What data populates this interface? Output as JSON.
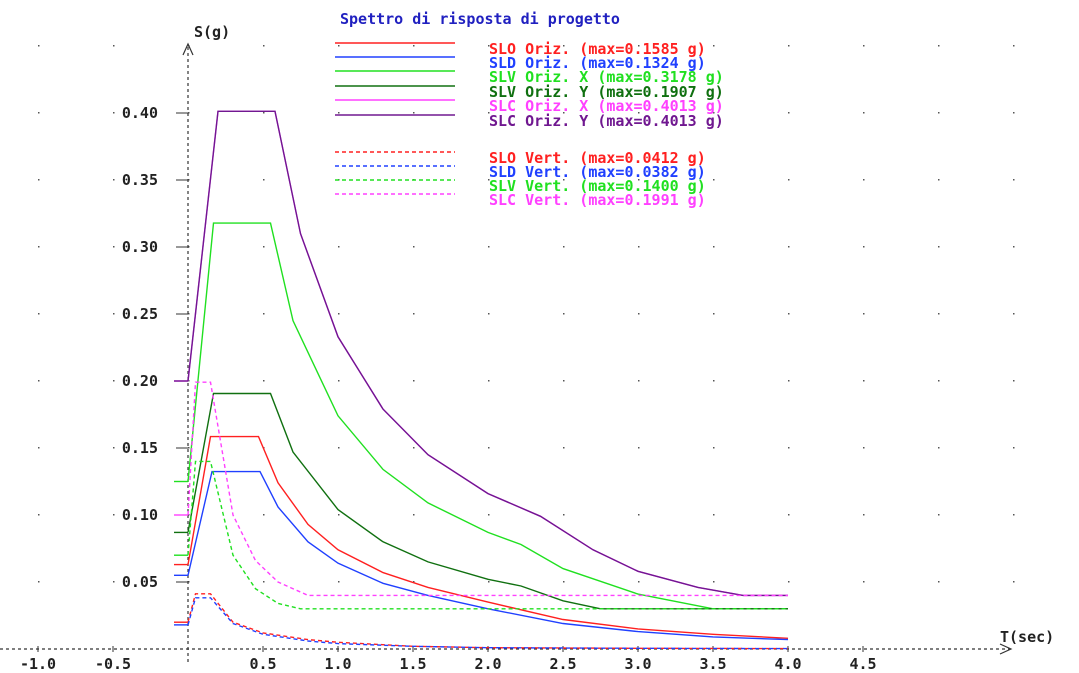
{
  "chart_data": {
    "type": "line",
    "title": "Spettro di risposta di progetto",
    "xlabel": "T(sec)",
    "ylabel": "S(g)",
    "xlim": [
      -1.2,
      5.5
    ],
    "ylim": [
      0,
      0.45
    ],
    "x_ticks": [
      "-1.0",
      "-0.5",
      "0.5",
      "1.0",
      "1.5",
      "2.0",
      "2.5",
      "3.0",
      "3.5",
      "4.0",
      "4.5"
    ],
    "x_tick_values": [
      -1.0,
      -0.5,
      0.5,
      1.0,
      1.5,
      2.0,
      2.5,
      3.0,
      3.5,
      4.0,
      4.5
    ],
    "y_ticks": [
      "0.05",
      "0.10",
      "0.15",
      "0.20",
      "0.25",
      "0.30",
      "0.35",
      "0.40"
    ],
    "y_tick_values": [
      0.05,
      0.1,
      0.15,
      0.2,
      0.25,
      0.3,
      0.35,
      0.4
    ],
    "grid": "dotted",
    "legend_position": "top",
    "series": [
      {
        "name": "SLO Oriz.  (max=0.1585 g)",
        "color": "#ff2020",
        "dash": false,
        "x": [
          0,
          0.15,
          0.47,
          0.6,
          0.8,
          1.0,
          1.3,
          1.6,
          2.0,
          2.5,
          3.0,
          3.5,
          4.0
        ],
        "y": [
          0.063,
          0.1585,
          0.1585,
          0.124,
          0.093,
          0.074,
          0.057,
          0.046,
          0.035,
          0.022,
          0.015,
          0.011,
          0.008
        ]
      },
      {
        "name": "SLD Oriz.  (max=0.1324 g)",
        "color": "#2040ff",
        "dash": false,
        "x": [
          0,
          0.16,
          0.48,
          0.6,
          0.8,
          1.0,
          1.3,
          1.6,
          2.0,
          2.5,
          3.0,
          3.5,
          4.0
        ],
        "y": [
          0.055,
          0.1324,
          0.1324,
          0.106,
          0.08,
          0.064,
          0.049,
          0.04,
          0.03,
          0.019,
          0.013,
          0.009,
          0.007
        ]
      },
      {
        "name": "SLV Oriz. X (max=0.3178 g)",
        "color": "#20e020",
        "dash": false,
        "x": [
          0,
          0.17,
          0.55,
          0.7,
          1.0,
          1.3,
          1.6,
          2.0,
          2.22,
          2.5,
          3.0,
          3.5,
          4.0
        ],
        "y": [
          0.125,
          0.3178,
          0.3178,
          0.245,
          0.174,
          0.134,
          0.109,
          0.087,
          0.078,
          0.06,
          0.041,
          0.03,
          0.03
        ]
      },
      {
        "name": "SLV Oriz. Y (max=0.1907 g)",
        "color": "#107010",
        "dash": false,
        "x": [
          0,
          0.17,
          0.55,
          0.7,
          1.0,
          1.3,
          1.6,
          2.0,
          2.22,
          2.5,
          2.75,
          3.0,
          3.5,
          4.0
        ],
        "y": [
          0.087,
          0.1907,
          0.1907,
          0.147,
          0.104,
          0.08,
          0.065,
          0.052,
          0.047,
          0.036,
          0.03,
          0.03,
          0.03,
          0.03
        ]
      },
      {
        "name": "SLC Oriz. X (max=0.4013 g)",
        "color": "#ff40ff",
        "dash": false,
        "x": [
          0,
          0.2,
          0.58,
          0.75,
          1.0,
          1.3,
          1.6,
          2.0,
          2.35,
          2.7,
          3.0,
          3.4,
          3.7,
          4.0
        ],
        "y": [
          0.2,
          0.4013,
          0.4013,
          0.31,
          0.233,
          0.179,
          0.145,
          0.116,
          0.099,
          0.074,
          0.058,
          0.046,
          0.04,
          0.04
        ]
      },
      {
        "name": "SLC Oriz. Y (max=0.4013 g)",
        "color": "#701890",
        "dash": false,
        "x": [
          0,
          0.2,
          0.58,
          0.75,
          1.0,
          1.3,
          1.6,
          2.0,
          2.35,
          2.7,
          3.0,
          3.4,
          3.7,
          4.0
        ],
        "y": [
          0.2,
          0.4013,
          0.4013,
          0.31,
          0.233,
          0.179,
          0.145,
          0.116,
          0.099,
          0.074,
          0.058,
          0.046,
          0.04,
          0.04
        ]
      },
      {
        "name": "SLO Vert.  (max=0.0412 g)",
        "color": "#ff2020",
        "dash": true,
        "x": [
          0,
          0.05,
          0.15,
          0.3,
          0.5,
          0.8,
          1.0,
          1.5,
          2.0,
          3.0,
          4.0
        ],
        "y": [
          0.02,
          0.0412,
          0.0412,
          0.02,
          0.012,
          0.007,
          0.005,
          0.002,
          0.001,
          0.0005,
          0.0003
        ]
      },
      {
        "name": "SLD Vert.  (max=0.0382 g)",
        "color": "#2040ff",
        "dash": true,
        "x": [
          0,
          0.05,
          0.15,
          0.3,
          0.5,
          0.8,
          1.0,
          1.5,
          2.0,
          3.0,
          4.0
        ],
        "y": [
          0.018,
          0.0382,
          0.0382,
          0.019,
          0.011,
          0.006,
          0.004,
          0.002,
          0.001,
          0.0005,
          0.0003
        ]
      },
      {
        "name": "SLV Vert.  (max=0.1400 g)",
        "color": "#20e020",
        "dash": true,
        "x": [
          0,
          0.05,
          0.15,
          0.3,
          0.45,
          0.6,
          0.75,
          4.0
        ],
        "y": [
          0.07,
          0.14,
          0.14,
          0.07,
          0.045,
          0.034,
          0.03,
          0.03
        ]
      },
      {
        "name": "SLC Vert.  (max=0.1991 g)",
        "color": "#ff40ff",
        "dash": true,
        "x": [
          0,
          0.05,
          0.15,
          0.3,
          0.45,
          0.6,
          0.8,
          4.0
        ],
        "y": [
          0.1,
          0.1991,
          0.1991,
          0.1,
          0.066,
          0.05,
          0.04,
          0.04
        ]
      }
    ]
  }
}
